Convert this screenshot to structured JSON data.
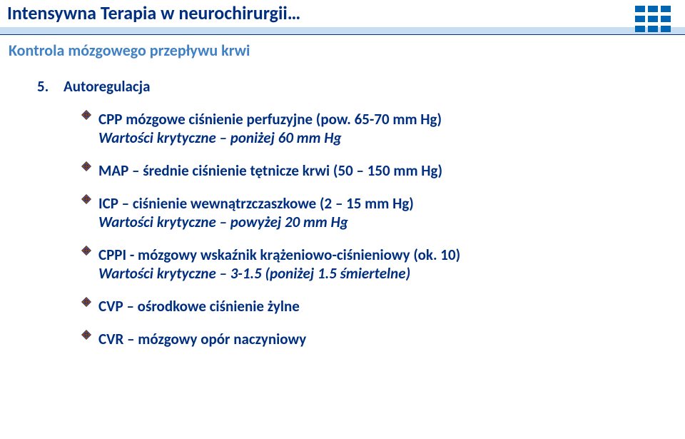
{
  "colors": {
    "title_text": "#002f80",
    "subtitle_text": "#4080c4",
    "body_text": "#002f80",
    "title_bar_bg": "#c7ddf1",
    "bullet_fill": "#0033a0",
    "bullet_outline": "#a84b00",
    "logo_blue": "#0066b3",
    "white": "#ffffff"
  },
  "typography": {
    "title_fontsize": 26,
    "subtitle_fontsize": 22,
    "body_fontsize": 21,
    "body_fontweight": 700
  },
  "title": "Intensywna Terapia w neurochirurgii…",
  "subtitle": "Kontrola mózgowego przepływu krwi",
  "list_number": "5.",
  "list_label": "Autoregulacja",
  "items": [
    {
      "line1": "CPP mózgowe ciśnienie perfuzyjne (pow. 65-70 mm Hg)",
      "line2": "Wartości krytyczne – poniżej 60 mm Hg",
      "line2_italic": true
    },
    {
      "line1": "MAP – średnie ciśnienie tętnicze krwi (50 – 150 mm Hg)"
    },
    {
      "line1": "ICP – ciśnienie wewnątrzczaszkowe (2 – 15 mm Hg)",
      "line2": "Wartości krytyczne – powyżej 20 mm Hg",
      "line2_italic": true
    },
    {
      "line1": "CPPI - mózgowy wskaźnik krążeniowo-ciśnieniowy (ok. 10)",
      "line2": "Wartości krytyczne – 3-1.5 (poniżej 1.5 śmiertelne)",
      "line2_italic": true
    },
    {
      "line1": "CVP – ośrodkowe ciśnienie żylne"
    },
    {
      "line1": "CVR – mózgowy opór naczyniowy"
    }
  ]
}
